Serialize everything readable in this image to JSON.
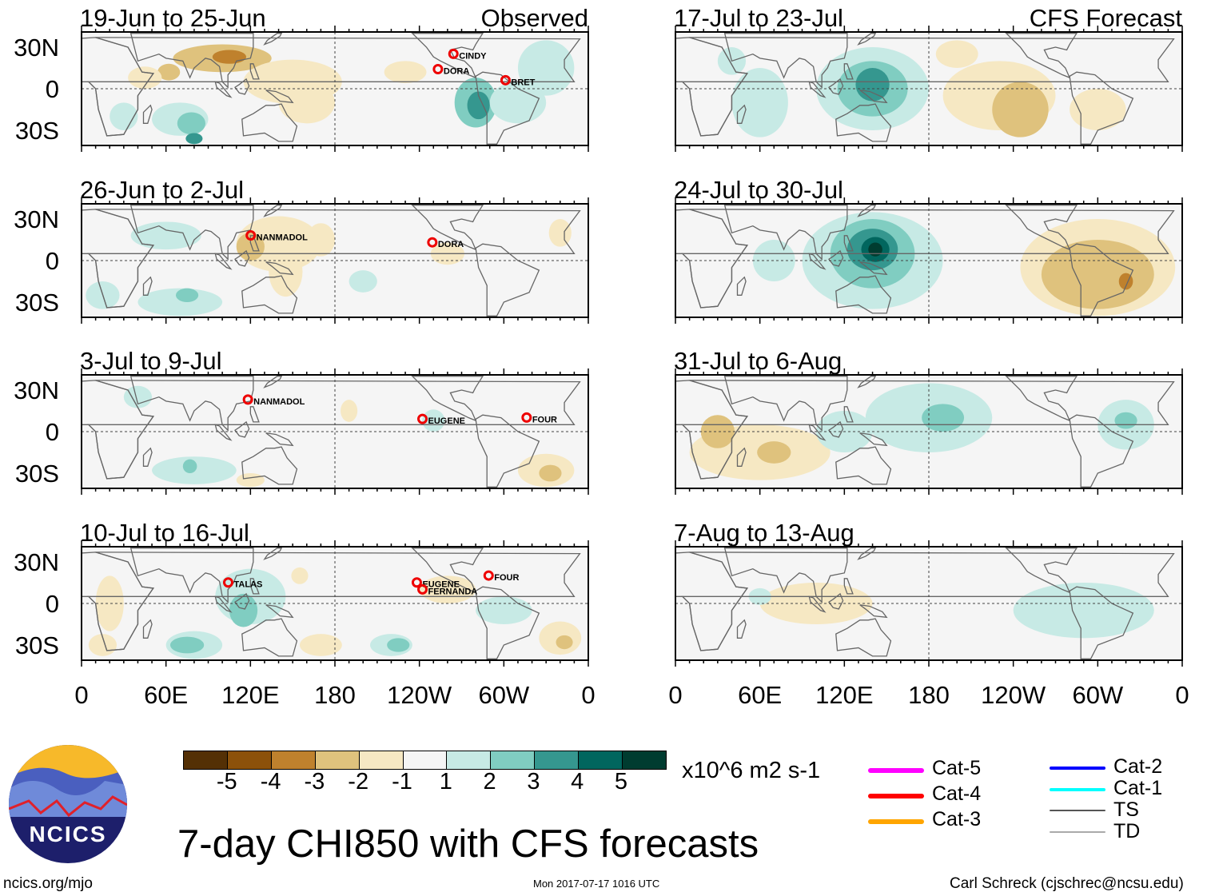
{
  "header": {
    "left_label": "Observed",
    "right_label": "CFS Forecast"
  },
  "title": "7-day CHI850 with CFS forecasts",
  "footer": {
    "site": "ncics.org/mjo",
    "timestamp": "Mon 2017-07-17 1016 UTC",
    "author": "Carl Schreck (cjschrec@ncsu.edu)"
  },
  "logo_text": "NCICS",
  "lat_labels": [
    "30N",
    "0",
    "30S"
  ],
  "lon_labels": [
    "0",
    "60E",
    "120E",
    "180",
    "120W",
    "60W",
    "0"
  ],
  "colorbar": {
    "units": "x10^6 m2 s-1",
    "ticks": [
      "-5",
      "-4",
      "-3",
      "-2",
      "-1",
      "1",
      "2",
      "3",
      "4",
      "5"
    ],
    "colors": [
      "#543005",
      "#8c510a",
      "#bf812d",
      "#dfc27d",
      "#f6e8c3",
      "#f5f5f5",
      "#c7eae5",
      "#80cdc1",
      "#35978f",
      "#01665e",
      "#003c30"
    ]
  },
  "legend": {
    "items": [
      {
        "label": "Cat-5",
        "color": "#ff00ff"
      },
      {
        "label": "Cat-4",
        "color": "#ff0000"
      },
      {
        "label": "Cat-3",
        "color": "#ffa500"
      },
      {
        "label": "Cat-2",
        "color": "#0000ff"
      },
      {
        "label": "Cat-1",
        "color": "#00ffff"
      },
      {
        "label": "TS",
        "color": "#555555"
      },
      {
        "label": "TD",
        "color": "#aaaaaa"
      }
    ]
  },
  "chart_data": {
    "type": "heatmap",
    "variable": "CHI850 anomaly",
    "xlim": [
      0,
      360
    ],
    "ylim": [
      -40,
      40
    ],
    "panels": [
      {
        "title": "19-Jun to 25-Jun",
        "column": "Observed",
        "blobs": [
          [
            100,
            22,
            35,
            10,
            -2
          ],
          [
            105,
            23,
            12,
            5,
            -3
          ],
          [
            62,
            12,
            8,
            6,
            -2
          ],
          [
            150,
            5,
            35,
            16,
            -1
          ],
          [
            160,
            -10,
            20,
            15,
            -1
          ],
          [
            45,
            8,
            12,
            8,
            -1
          ],
          [
            70,
            -22,
            20,
            12,
            1
          ],
          [
            78,
            -25,
            10,
            8,
            2
          ],
          [
            80,
            -36,
            6,
            4,
            3
          ],
          [
            280,
            -10,
            15,
            18,
            2
          ],
          [
            282,
            -12,
            8,
            10,
            3
          ],
          [
            330,
            15,
            20,
            20,
            1
          ],
          [
            310,
            -10,
            20,
            15,
            1
          ],
          [
            230,
            12,
            15,
            8,
            -1
          ],
          [
            30,
            -20,
            10,
            10,
            1
          ]
        ],
        "storms": [
          {
            "name": "CINDY",
            "lon": 271,
            "lat": 24,
            "cat": "TS"
          },
          {
            "name": "DORA",
            "lon": 260,
            "lat": 13,
            "cat": "Cat-1"
          },
          {
            "name": "BRET",
            "lon": 308,
            "lat": 5,
            "cat": "TS"
          }
        ]
      },
      {
        "title": "26-Jun to 2-Jul",
        "column": "Observed",
        "blobs": [
          [
            140,
            12,
            30,
            20,
            -1
          ],
          [
            120,
            10,
            10,
            10,
            -2
          ],
          [
            145,
            -8,
            12,
            18,
            -1
          ],
          [
            170,
            15,
            10,
            12,
            -1
          ],
          [
            60,
            18,
            25,
            10,
            1
          ],
          [
            70,
            -30,
            30,
            10,
            1
          ],
          [
            75,
            -25,
            8,
            5,
            2
          ],
          [
            15,
            -25,
            12,
            10,
            1
          ],
          [
            200,
            -15,
            10,
            8,
            1
          ],
          [
            260,
            5,
            12,
            8,
            -1
          ],
          [
            340,
            20,
            8,
            10,
            -1
          ]
        ],
        "storms": [
          {
            "name": "NANMADOL",
            "lon": 127,
            "lat": 17,
            "cat": "TS"
          },
          {
            "name": "DORA",
            "lon": 256,
            "lat": 12,
            "cat": "Cat-1"
          }
        ]
      },
      {
        "title": "3-Jul to 9-Jul",
        "column": "Observed",
        "blobs": [
          [
            190,
            15,
            6,
            8,
            -1
          ],
          [
            40,
            25,
            10,
            8,
            1
          ],
          [
            80,
            -28,
            30,
            10,
            1
          ],
          [
            77,
            -25,
            5,
            5,
            2
          ],
          [
            330,
            -28,
            20,
            12,
            -1
          ],
          [
            333,
            -30,
            8,
            6,
            -2
          ],
          [
            120,
            -35,
            10,
            5,
            -1
          ],
          [
            250,
            8,
            8,
            8,
            1
          ]
        ],
        "storms": [
          {
            "name": "NANMADOL",
            "lon": 125,
            "lat": 22,
            "cat": "TS"
          },
          {
            "name": "EUGENE",
            "lon": 249,
            "lat": 8,
            "cat": "Cat-1"
          },
          {
            "name": "FOUR",
            "lon": 323,
            "lat": 9,
            "cat": "TD"
          }
        ]
      },
      {
        "title": "10-Jul to 16-Jul",
        "column": "Observed",
        "blobs": [
          [
            120,
            5,
            25,
            20,
            1
          ],
          [
            115,
            -5,
            10,
            12,
            2
          ],
          [
            80,
            -30,
            20,
            10,
            1
          ],
          [
            75,
            -30,
            12,
            6,
            2
          ],
          [
            220,
            -30,
            15,
            8,
            1
          ],
          [
            225,
            -30,
            8,
            5,
            2
          ],
          [
            170,
            -30,
            15,
            8,
            -1
          ],
          [
            20,
            0,
            10,
            20,
            -1
          ],
          [
            15,
            -30,
            10,
            8,
            -1
          ],
          [
            340,
            -25,
            15,
            12,
            -1
          ],
          [
            343,
            -28,
            6,
            5,
            -2
          ],
          [
            260,
            10,
            20,
            10,
            -1
          ],
          [
            155,
            20,
            6,
            6,
            -1
          ],
          [
            300,
            -5,
            20,
            10,
            1
          ]
        ],
        "storms": [
          {
            "name": "TALAS",
            "lon": 111,
            "lat": 14,
            "cat": "Cat-4"
          },
          {
            "name": "EUGENE",
            "lon": 245,
            "lat": 14,
            "cat": "Cat-2"
          },
          {
            "name": "FERNANDA",
            "lon": 249,
            "lat": 9,
            "cat": "Cat-4"
          },
          {
            "name": "FOUR",
            "lon": 296,
            "lat": 19,
            "cat": "TD"
          }
        ]
      },
      {
        "title": "17-Jul to 23-Jul",
        "column": "CFS Forecast",
        "blobs": [
          [
            140,
            0,
            40,
            30,
            1
          ],
          [
            140,
            0,
            25,
            20,
            2
          ],
          [
            140,
            3,
            12,
            12,
            3
          ],
          [
            230,
            -5,
            40,
            25,
            -1
          ],
          [
            245,
            -15,
            20,
            20,
            -2
          ],
          [
            300,
            -15,
            20,
            15,
            -1
          ],
          [
            60,
            -10,
            20,
            25,
            1
          ],
          [
            40,
            20,
            10,
            10,
            1
          ],
          [
            200,
            25,
            15,
            10,
            -1
          ]
        ],
        "storms": []
      },
      {
        "title": "24-Jul to 30-Jul",
        "column": "CFS Forecast",
        "blobs": [
          [
            140,
            0,
            50,
            35,
            1
          ],
          [
            140,
            5,
            30,
            25,
            2
          ],
          [
            140,
            8,
            18,
            15,
            3
          ],
          [
            142,
            8,
            10,
            9,
            4
          ],
          [
            142,
            8,
            5,
            5,
            5
          ],
          [
            300,
            -5,
            55,
            35,
            -1
          ],
          [
            300,
            -10,
            40,
            25,
            -2
          ],
          [
            320,
            -15,
            5,
            6,
            -3
          ],
          [
            70,
            0,
            15,
            15,
            1
          ]
        ],
        "storms": []
      },
      {
        "title": "31-Jul to 6-Aug",
        "column": "CFS Forecast",
        "blobs": [
          [
            60,
            -15,
            50,
            20,
            -1
          ],
          [
            70,
            -15,
            12,
            8,
            -2
          ],
          [
            30,
            0,
            12,
            12,
            -2
          ],
          [
            180,
            10,
            45,
            25,
            1
          ],
          [
            190,
            10,
            15,
            10,
            2
          ],
          [
            320,
            5,
            20,
            18,
            1
          ],
          [
            320,
            8,
            8,
            6,
            2
          ],
          [
            120,
            0,
            20,
            15,
            1
          ]
        ],
        "storms": []
      },
      {
        "title": "7-Aug to 13-Aug",
        "column": "CFS Forecast",
        "blobs": [
          [
            100,
            0,
            40,
            15,
            -1
          ],
          [
            290,
            -5,
            50,
            20,
            1
          ],
          [
            60,
            5,
            8,
            6,
            1
          ]
        ],
        "storms": []
      }
    ],
    "blob_format": [
      "lon",
      "lat",
      "lon_radius",
      "lat_radius",
      "level"
    ]
  }
}
